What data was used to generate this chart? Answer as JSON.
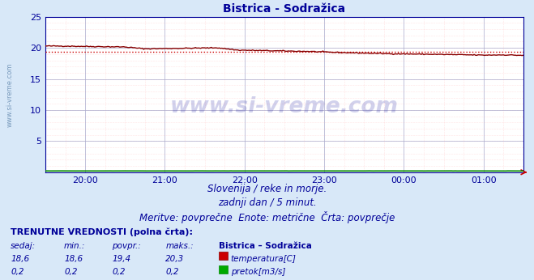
{
  "title": "Bistrica - Sodražica",
  "title_color": "#000099",
  "title_fontsize": 10,
  "bg_color": "#d8e8f8",
  "plot_bg_color": "#ffffff",
  "xlim": [
    0,
    360
  ],
  "ylim": [
    0,
    25
  ],
  "yticks": [
    5,
    10,
    15,
    20,
    25
  ],
  "xtick_labels": [
    "20:00",
    "21:00",
    "22:00",
    "23:00",
    "00:00",
    "01:00"
  ],
  "xtick_positions": [
    30,
    90,
    150,
    210,
    270,
    330
  ],
  "temp_avg": 19.4,
  "temp_avg_color": "#cc0000",
  "temp_color": "#880000",
  "flow_color": "#008800",
  "watermark": "www.si-vreme.com",
  "watermark_color": "#000099",
  "watermark_alpha": 0.18,
  "sub_text1": "Slovenija / reke in morje.",
  "sub_text2": "zadnji dan / 5 minut.",
  "sub_text3": "Meritve: povprečne  Enote: metrične  Črta: povprečje",
  "sub_color": "#000099",
  "sub_fontsize": 8.5,
  "legend_title": "TRENUTNE VREDNOSTI (polna črta):",
  "col_headers": [
    "sedaj:",
    "min.:",
    "povpr.:",
    "maks.:",
    "Bistrica – Sodražica"
  ],
  "row1_vals": [
    "18,6",
    "18,6",
    "19,4",
    "20,3"
  ],
  "row1_label": "temperatura[C]",
  "row2_vals": [
    "0,2",
    "0,2",
    "0,2",
    "0,2"
  ],
  "row2_label": "pretok[m3/s]",
  "legend_color": "#000099",
  "left_label": "www.si-vreme.com",
  "left_label_color": "#7799bb"
}
